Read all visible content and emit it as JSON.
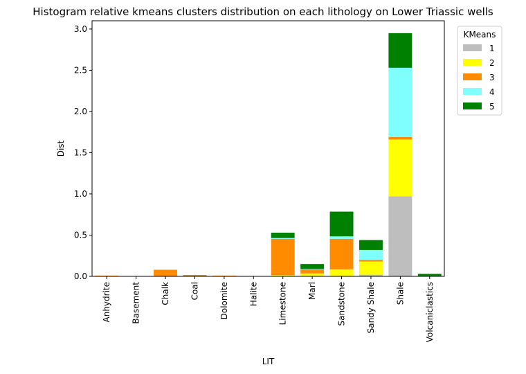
{
  "chart_data": {
    "type": "bar",
    "stacked": true,
    "title": "Histogram relative kmeans clusters distribution on each lithology on Lower Triassic wells",
    "xlabel": "LIT",
    "ylabel": "Dist",
    "ylim": [
      0,
      3.1
    ],
    "yticks": [
      "0.0",
      "0.5",
      "1.0",
      "1.5",
      "2.0",
      "2.5",
      "3.0"
    ],
    "grid": false,
    "legend": {
      "title": "KMeans",
      "placement": "outside-top-right"
    },
    "categories": [
      "Anhydrite",
      "Basement",
      "Chalk",
      "Coal",
      "Dolomite",
      "Halite",
      "Limestone",
      "Marl",
      "Sandstone",
      "Sandy Shale",
      "Shale",
      "Volcaniclastics"
    ],
    "series": [
      {
        "name": "1",
        "color": "#bebebe",
        "values": [
          0,
          0,
          0,
          0.005,
          0,
          0,
          0.005,
          0.005,
          0.005,
          0.02,
          0.97,
          0
        ]
      },
      {
        "name": "2",
        "color": "#ffff00",
        "values": [
          0.002,
          0,
          0,
          0.002,
          0.002,
          0,
          0.01,
          0.03,
          0.08,
          0.16,
          0.69,
          0
        ]
      },
      {
        "name": "3",
        "color": "#ff8c00",
        "values": [
          0.006,
          0,
          0.08,
          0.002,
          0.006,
          0,
          0.44,
          0.05,
          0.37,
          0.02,
          0.03,
          0
        ]
      },
      {
        "name": "4",
        "color": "#80ffff",
        "values": [
          0,
          0,
          0,
          0.003,
          0,
          0,
          0.01,
          0.005,
          0.03,
          0.12,
          0.84,
          0.005
        ]
      },
      {
        "name": "5",
        "color": "#008000",
        "values": [
          0,
          0,
          0,
          0.004,
          0,
          0,
          0.065,
          0.06,
          0.3,
          0.12,
          0.42,
          0.025
        ]
      }
    ]
  }
}
